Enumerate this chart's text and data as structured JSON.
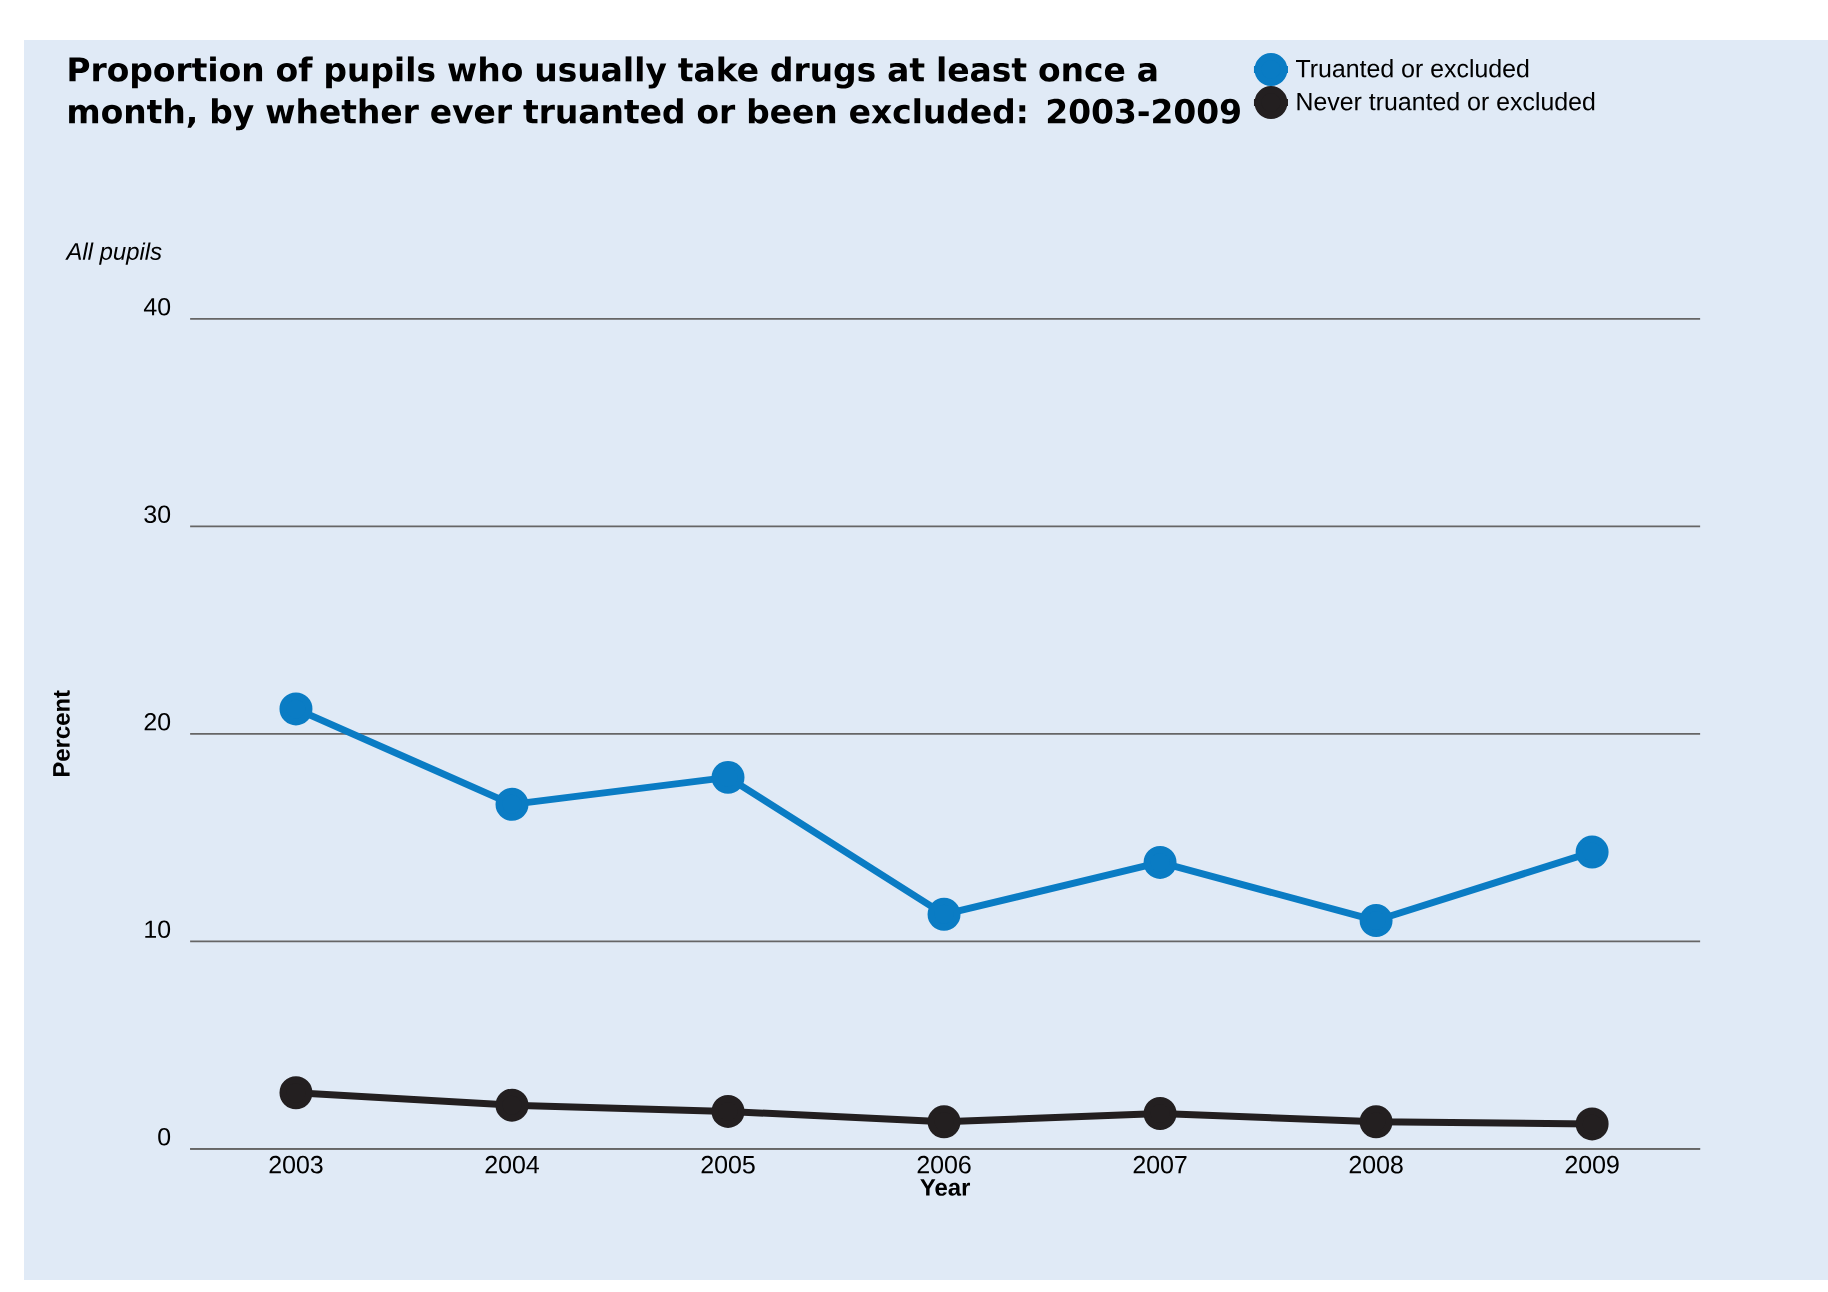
{
  "chart_data": {
    "type": "line",
    "title": "Proportion of pupils who usually take drugs at least once a month, by whether ever truanted or been excluded: 2003-2009",
    "subtitle": "All pupils",
    "xlabel": "Year",
    "ylabel": "Percent",
    "categories": [
      "2003",
      "2004",
      "2005",
      "2006",
      "2007",
      "2008",
      "2009"
    ],
    "series": [
      {
        "name": "Truanted or excluded",
        "color": "#0a7cc4",
        "values": [
          21.2,
          16.6,
          17.9,
          11.3,
          13.8,
          11.0,
          14.3
        ]
      },
      {
        "name": "Never truanted or excluded",
        "color": "#231f20",
        "values": [
          2.7,
          2.1,
          1.8,
          1.3,
          1.7,
          1.3,
          1.2
        ]
      }
    ],
    "ylim": [
      0,
      40
    ],
    "yticks": [
      0,
      10,
      20,
      30,
      40
    ],
    "grid": "y",
    "legend": "top right",
    "marker": "circle",
    "line_style": "solid"
  }
}
